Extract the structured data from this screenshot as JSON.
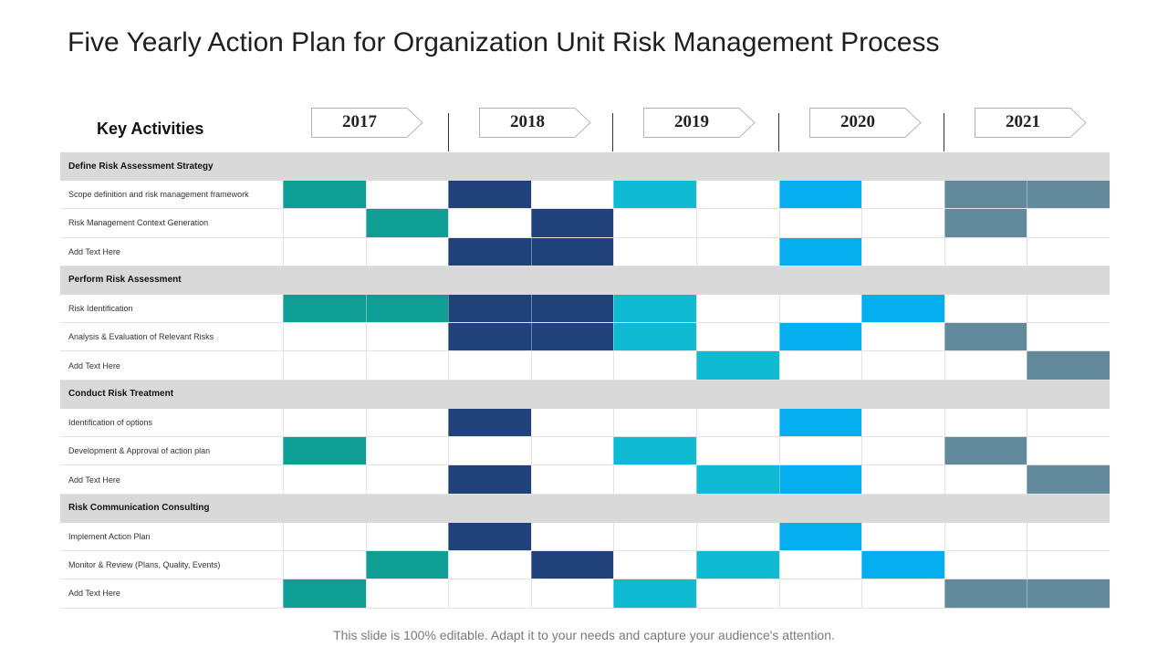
{
  "title": "Five Yearly Action Plan for Organization Unit Risk Management Process",
  "key_activities_label": "Key Activities",
  "years": [
    "2017",
    "2018",
    "2019",
    "2020",
    "2021"
  ],
  "colors": {
    "teal": "#0e9e94",
    "navy": "#21417a",
    "cyan": "#0fbad2",
    "sky": "#05aeef",
    "slate": "#638a9c",
    "section_bg": "#d9d9d9"
  },
  "rows": [
    {
      "type": "section",
      "label": "Define Risk Assessment Strategy"
    },
    {
      "type": "item",
      "label": "Scope definition and risk management framework",
      "cells": [
        "teal",
        "",
        "navy",
        "",
        "cyan",
        "",
        "sky",
        "",
        "slate",
        "slate"
      ]
    },
    {
      "type": "item",
      "label": "Risk Management  Context Generation",
      "cells": [
        "",
        "teal",
        "",
        "navy",
        "",
        "",
        "",
        "",
        "slate",
        ""
      ]
    },
    {
      "type": "item",
      "label": "Add Text Here",
      "cells": [
        "",
        "",
        "navy",
        "navy",
        "",
        "",
        "sky",
        "",
        "",
        ""
      ]
    },
    {
      "type": "section",
      "label": "Perform Risk Assessment"
    },
    {
      "type": "item",
      "label": "Risk Identification",
      "cells": [
        "teal",
        "teal",
        "navy",
        "navy",
        "cyan",
        "",
        "",
        "sky",
        "",
        ""
      ]
    },
    {
      "type": "item",
      "label": "Analysis & Evaluation of Relevant Risks",
      "cells": [
        "",
        "",
        "navy",
        "navy",
        "cyan",
        "",
        "sky",
        "",
        "slate",
        ""
      ]
    },
    {
      "type": "item",
      "label": "Add Text Here",
      "cells": [
        "",
        "",
        "",
        "",
        "",
        "cyan",
        "",
        "",
        "",
        "slate"
      ]
    },
    {
      "type": "section",
      "label": "Conduct Risk Treatment"
    },
    {
      "type": "item",
      "label": "Identification of options",
      "cells": [
        "",
        "",
        "navy",
        "",
        "",
        "",
        "sky",
        "",
        "",
        ""
      ]
    },
    {
      "type": "item",
      "label": "Development & Approval of action plan",
      "cells": [
        "teal",
        "",
        "",
        "",
        "cyan",
        "",
        "",
        "",
        "slate",
        ""
      ]
    },
    {
      "type": "item",
      "label": "Add Text Here",
      "cells": [
        "",
        "",
        "navy",
        "",
        "",
        "cyan",
        "sky",
        "",
        "",
        "slate"
      ]
    },
    {
      "type": "section",
      "label": "Risk Communication Consulting"
    },
    {
      "type": "item",
      "label": "Implement Action Plan",
      "cells": [
        "",
        "",
        "navy",
        "",
        "",
        "",
        "sky",
        "",
        "",
        ""
      ]
    },
    {
      "type": "item",
      "label": "Monitor  & Review (Plans, Quality, Events)",
      "cells": [
        "",
        "teal",
        "",
        "navy",
        "",
        "cyan",
        "",
        "sky",
        "",
        ""
      ]
    },
    {
      "type": "item",
      "label": "Add Text Here",
      "cells": [
        "teal",
        "",
        "",
        "",
        "cyan",
        "",
        "",
        "",
        "slate",
        "slate"
      ]
    }
  ],
  "footer": "This slide is 100% editable. Adapt it to your needs and capture your audience's attention."
}
